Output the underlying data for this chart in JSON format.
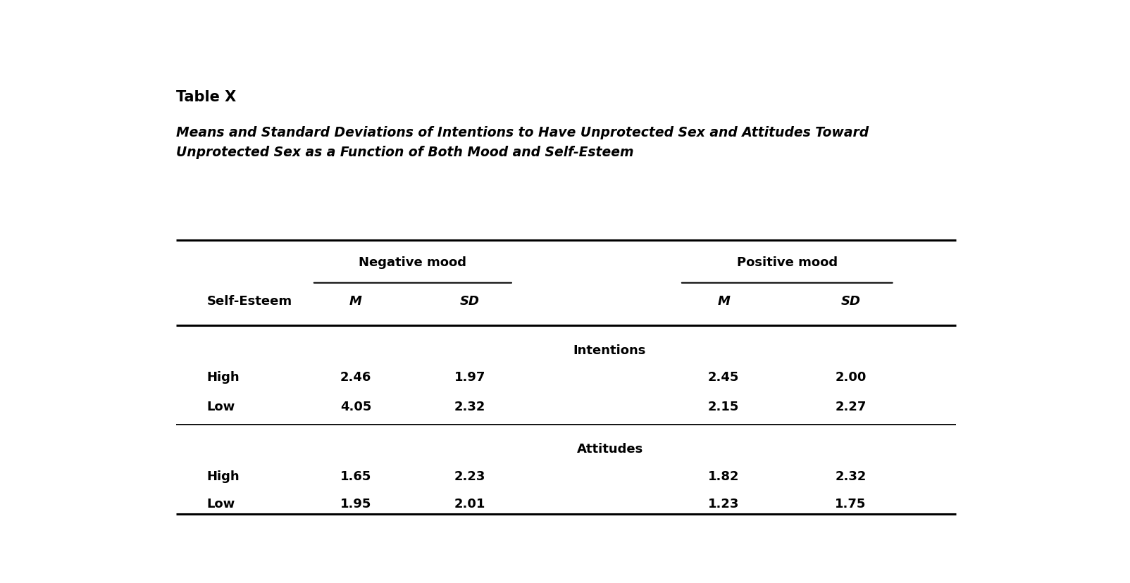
{
  "table_label": "Table X",
  "title_line1": "Means and Standard Deviations of Intentions to Have Unprotected Sex and Attitudes Toward",
  "title_line2": "Unprotected Sex as a Function of Both Mood and Self-Esteem",
  "col_group1": "Negative mood",
  "col_group2": "Positive mood",
  "col_sub1": "M",
  "col_sub2": "SD",
  "col_sub3": "M",
  "col_sub4": "SD",
  "row_header": "Self-Esteem",
  "section1_label": "Intentions",
  "section2_label": "Attitudes",
  "rows": [
    {
      "section": "Intentions",
      "self_esteem": "High",
      "neg_m": "2.46",
      "neg_sd": "1.97",
      "pos_m": "2.45",
      "pos_sd": "2.00"
    },
    {
      "section": "Intentions",
      "self_esteem": "Low",
      "neg_m": "4.05",
      "neg_sd": "2.32",
      "pos_m": "2.15",
      "pos_sd": "2.27"
    },
    {
      "section": "Attitudes",
      "self_esteem": "High",
      "neg_m": "1.65",
      "neg_sd": "2.23",
      "pos_m": "1.82",
      "pos_sd": "2.32"
    },
    {
      "section": "Attitudes",
      "self_esteem": "Low",
      "neg_m": "1.95",
      "neg_sd": "2.01",
      "pos_m": "1.23",
      "pos_sd": "1.75"
    }
  ],
  "bg_color": "#ffffff",
  "text_color": "#000000"
}
